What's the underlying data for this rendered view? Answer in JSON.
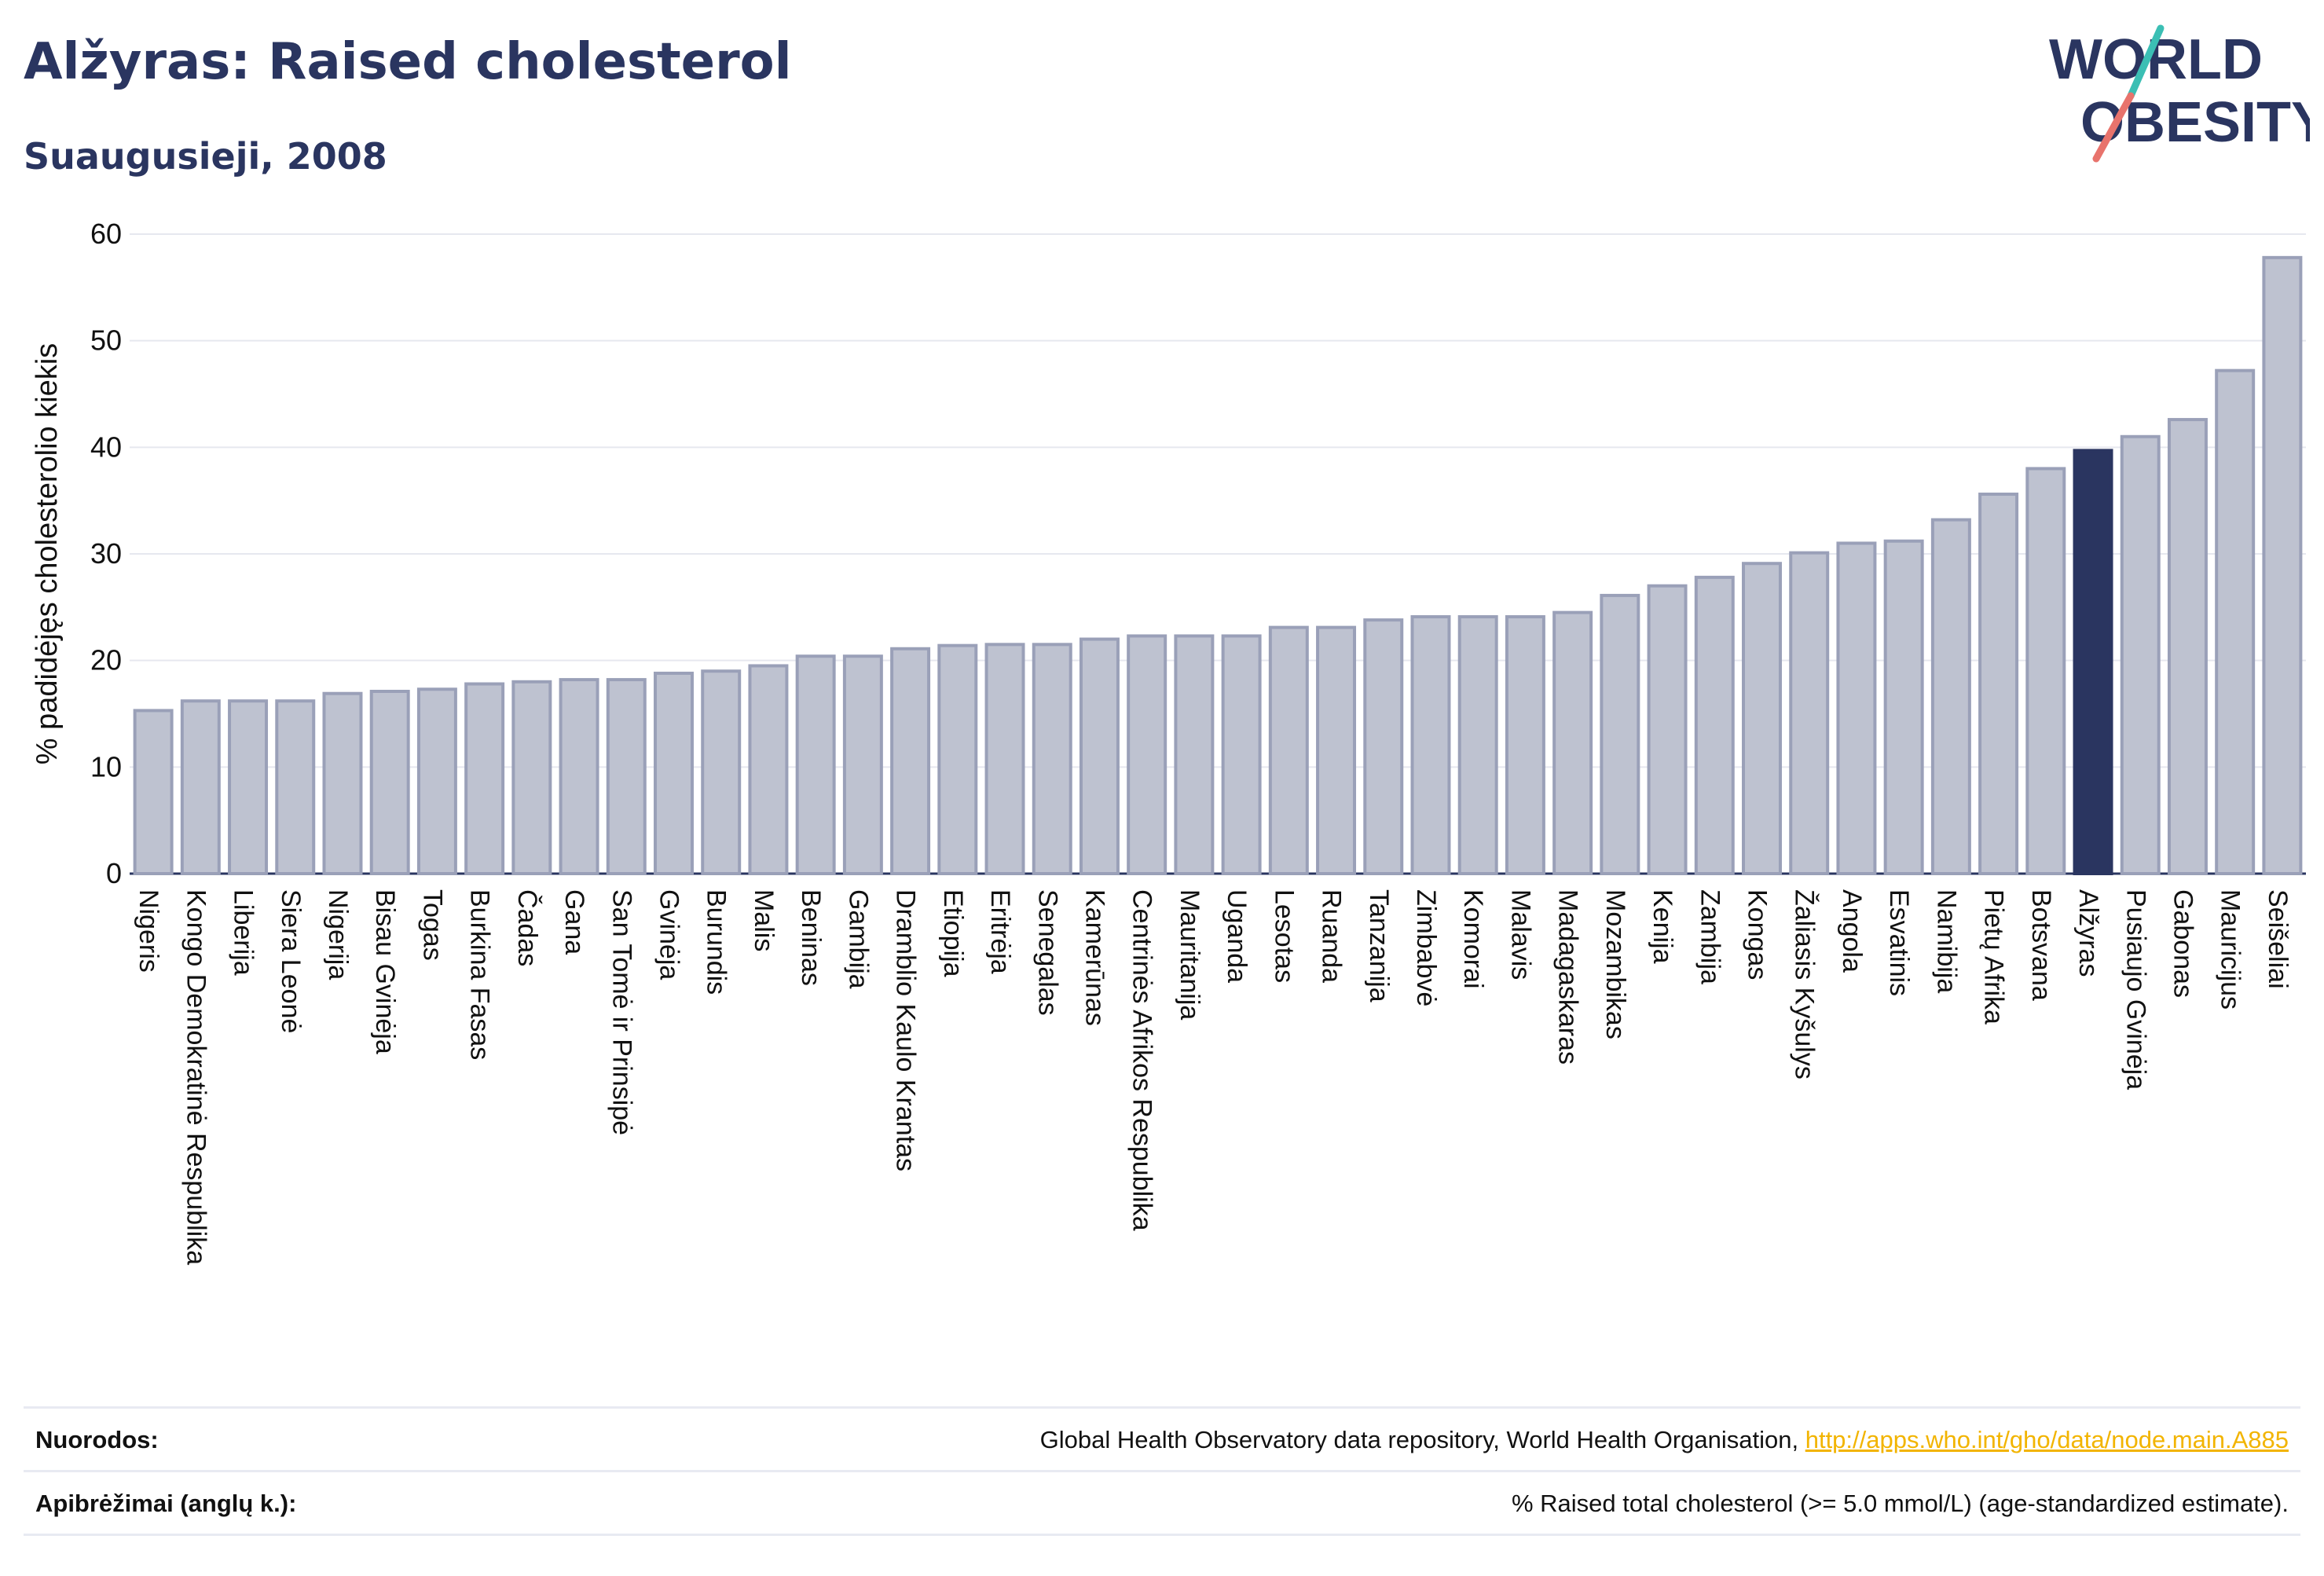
{
  "header": {
    "title": "Alžyras: Raised cholesterol",
    "subtitle": "Suaugusieji, 2008"
  },
  "logo": {
    "line1": "WORLD",
    "line2": "OBESITY",
    "name": "world-obesity-logo"
  },
  "colors": {
    "bar": "#bec2d0",
    "bar_border": "#9aa0b8",
    "highlight": "#2a3560",
    "grid": "#e6e8ef",
    "text": "#2a3560",
    "link": "#f2b400",
    "logo_slash_teal": "#3bbfb4",
    "logo_slash_red": "#e8736c"
  },
  "chart_data": {
    "type": "bar",
    "ylabel": "% padidėjęs cholesterolio kiekis",
    "ylim": [
      0,
      60
    ],
    "yticks": [
      0,
      10,
      20,
      30,
      40,
      50,
      60
    ],
    "grid": true,
    "highlight": "Alžyras",
    "categories": [
      "Nigeris",
      "Kongo Demokratinė Respublika",
      "Liberija",
      "Siera Leonė",
      "Nigerija",
      "Bisau Gvinėja",
      "Togas",
      "Burkina Fasas",
      "Čadas",
      "Gana",
      "San Tomė ir Prinsipė",
      "Gvinėja",
      "Burundis",
      "Malis",
      "Beninas",
      "Gambija",
      "Dramblio Kaulo Krantas",
      "Etiopija",
      "Eritrėja",
      "Senegalas",
      "Kamerūnas",
      "Centrinės Afrikos Respublika",
      "Mauritanija",
      "Uganda",
      "Lesotas",
      "Ruanda",
      "Tanzanija",
      "Zimbabvė",
      "Komorai",
      "Malavis",
      "Madagaskaras",
      "Mozambikas",
      "Kenija",
      "Zambija",
      "Kongas",
      "Žaliasis Kyšulys",
      "Angola",
      "Esvatinis",
      "Namibija",
      "Pietų Afrika",
      "Botsvana",
      "Alžyras",
      "Pusiaujo Gvinėja",
      "Gabonas",
      "Mauricijus",
      "Seišeliai"
    ],
    "values": [
      15.3,
      16.2,
      16.2,
      16.2,
      16.9,
      17.1,
      17.3,
      17.8,
      18.0,
      18.2,
      18.2,
      18.8,
      19.0,
      19.5,
      20.4,
      20.4,
      21.1,
      21.4,
      21.5,
      21.5,
      22.0,
      22.3,
      22.3,
      22.3,
      23.1,
      23.1,
      23.8,
      24.1,
      24.1,
      24.1,
      24.5,
      26.1,
      27.0,
      27.8,
      29.1,
      30.1,
      31.0,
      31.2,
      33.2,
      35.6,
      38.0,
      39.7,
      41.0,
      42.6,
      47.2,
      57.8
    ]
  },
  "footer": {
    "references_label": "Nuorodos:",
    "references_text": "Global Health Observatory data repository, World Health Organisation, ",
    "references_link": "http://apps.who.int/gho/data/node.main.A885",
    "definitions_label": "Apibrėžimai (anglų k.):",
    "definitions_text": "% Raised total cholesterol (>= 5.0 mmol/L) (age-standardized estimate)."
  }
}
